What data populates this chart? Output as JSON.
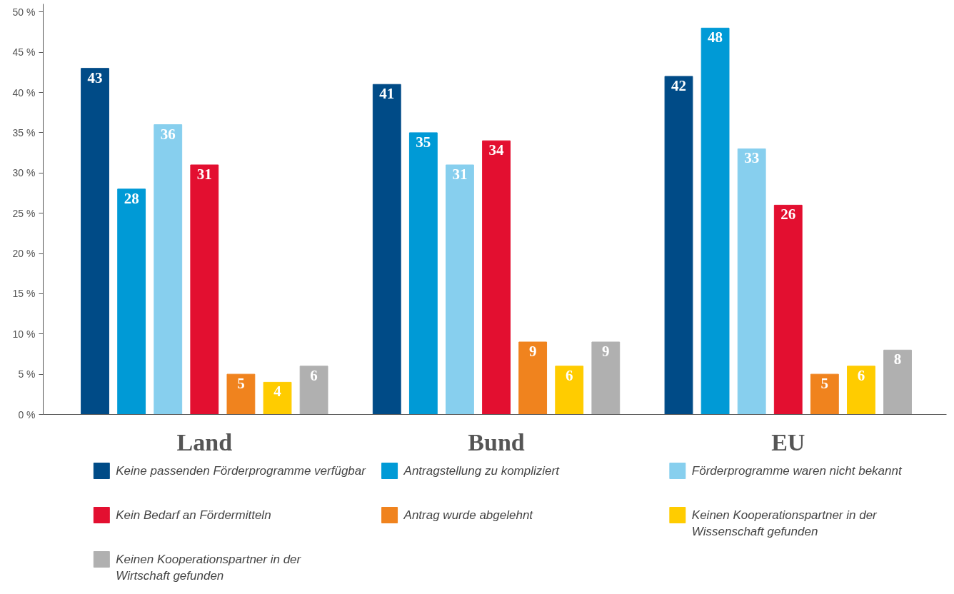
{
  "chart_data": {
    "type": "bar",
    "categories": [
      "Land",
      "Bund",
      "EU"
    ],
    "series": [
      {
        "name": "Keine passenden Förderprogramme verfügbar",
        "color": "#004b87",
        "values": [
          43,
          41,
          42
        ]
      },
      {
        "name": "Antragstellung zu kompliziert",
        "color": "#009ad6",
        "values": [
          28,
          35,
          48
        ]
      },
      {
        "name": "Förderprogramme waren nicht bekannt",
        "color": "#87cfee",
        "values": [
          36,
          31,
          33
        ]
      },
      {
        "name": "Kein Bedarf an Fördermitteln",
        "color": "#e30f30",
        "values": [
          31,
          34,
          26
        ]
      },
      {
        "name": "Antrag wurde abgelehnt",
        "color": "#f0831e",
        "values": [
          5,
          9,
          5
        ]
      },
      {
        "name": "Keinen Kooperationspartner in der Wissenschaft gefunden",
        "color": "#ffcc00",
        "values": [
          4,
          6,
          6
        ]
      },
      {
        "name": "Keinen Kooperationspartner in der Wirtschaft gefunden",
        "color": "#b0b0b0",
        "values": [
          6,
          9,
          8
        ]
      }
    ],
    "ylim": [
      0,
      51
    ],
    "yticks": [
      {
        "value": 0,
        "label": "0 %"
      },
      {
        "value": 5,
        "label": "5 %"
      },
      {
        "value": 10,
        "label": "10 %"
      },
      {
        "value": 15,
        "label": "15 %"
      },
      {
        "value": 20,
        "label": "20 %"
      },
      {
        "value": 25,
        "label": "25 %"
      },
      {
        "value": 30,
        "label": "30 %"
      },
      {
        "value": 35,
        "label": "35 %"
      },
      {
        "value": 40,
        "label": "40 %"
      },
      {
        "value": 45,
        "label": "45 %"
      },
      {
        "value": 50,
        "label": "50 %"
      }
    ],
    "grid": false,
    "legend": "bottom",
    "data_labels": true
  }
}
